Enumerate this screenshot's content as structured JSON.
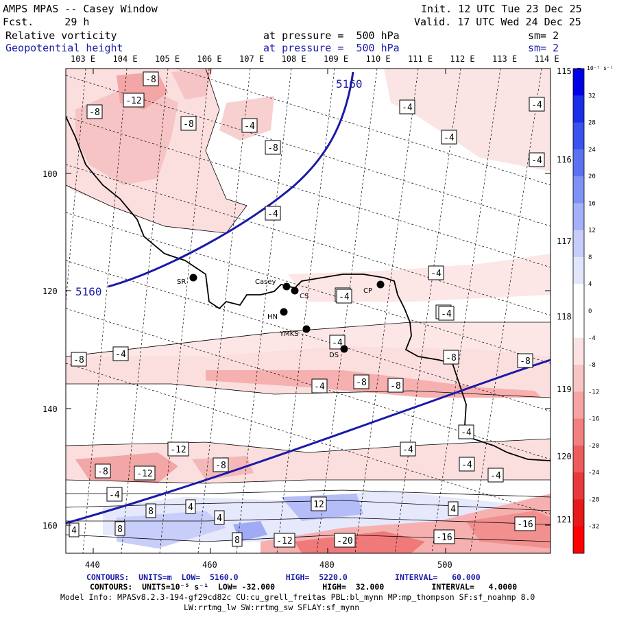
{
  "header": {
    "title": "AMPS MPAS -- Casey Window",
    "forecast": "Fcst.     29 h",
    "init": "Init. 12 UTC Tue 23 Dec 25",
    "valid": "Valid. 17 UTC Wed 24 Dec 25",
    "field1": {
      "name": "Relative vorticity",
      "level": "at pressure =  500 hPa",
      "smooth": "sm= 2"
    },
    "field2": {
      "name": "Geopotential height",
      "level": "at pressure =  500 hPa",
      "smooth": "sm= 2"
    }
  },
  "map": {
    "lon_labels": [
      "103 E",
      "104 E",
      "105 E",
      "106 E",
      "107 E",
      "108 E",
      "109 E",
      "110 E",
      "111 E",
      "112 E",
      "113 E",
      "114 E"
    ],
    "lat_labels_right": [
      "115 E",
      "116 E",
      "117 E",
      "118 E",
      "119 E",
      "120 E",
      "121 E"
    ],
    "y_ticks": [
      "100",
      "120",
      "140",
      "160"
    ],
    "x_ticks": [
      "440",
      "460",
      "480",
      "500"
    ],
    "stations": [
      {
        "code": "SR"
      },
      {
        "code": "Casey"
      },
      {
        "code": "CS"
      },
      {
        "code": "CP"
      },
      {
        "code": "HN"
      },
      {
        "code": "YMKS"
      },
      {
        "code": "DS"
      }
    ],
    "height_contour_label": "5160",
    "vort_labels": [
      "-8",
      "-12",
      "-8",
      "-8",
      "-4",
      "-8",
      "-4",
      "-4",
      "-4",
      "-4",
      "-4",
      "-4",
      "-4",
      "-4",
      "-8",
      "-4",
      "-8",
      "-4",
      "-8",
      "-8",
      "-8",
      "-12",
      "-12",
      "-8",
      "-4",
      "-4",
      "-8",
      "-4",
      "-4",
      "4",
      "8",
      "4",
      "8",
      "4",
      "12",
      "4",
      "8",
      "-12",
      "-20",
      "-16",
      "-16",
      "-4",
      "-4",
      "-4",
      "-4"
    ]
  },
  "colorbar": {
    "unit": "10⁻⁵ s⁻¹",
    "ticks": [
      "32",
      "28",
      "24",
      "20",
      "16",
      "12",
      "8",
      "4",
      "0",
      "-4",
      "-8",
      "-12",
      "-16",
      "-20",
      "-24",
      "-28",
      "-32"
    ],
    "colors": [
      "#0000e6",
      "#1a2ee8",
      "#3a52ee",
      "#5c72f2",
      "#7f91f5",
      "#a4b0f8",
      "#c6cdfa",
      "#e2e6fc",
      "#ffffff",
      "#ffffff",
      "#fce2e2",
      "#f8c4c4",
      "#f5a3a3",
      "#f28080",
      "#ee5c5c",
      "#e83a3a",
      "#e61a1a",
      "#ff0000"
    ]
  },
  "footer": {
    "line1": "CONTOURS:  UNITS=m  LOW=  5160.0          HIGH=  5220.0          INTERVAL=   60.000",
    "line2": "CONTOURS:  UNITS=10⁻⁵ s⁻¹  LOW= -32.000          HIGH=  32.000          INTERVAL=   4.0000",
    "line3": "Model Info: MPASv8.2.3-194-gf29cd82c CU:cu_grell_freitas PBL:bl_mynn MP:mp_thompson SF:sf_noahmp 8.0",
    "line4": "LW:rrtmg_lw SW:rrtmg_sw SFLAY:sf_mynn"
  }
}
